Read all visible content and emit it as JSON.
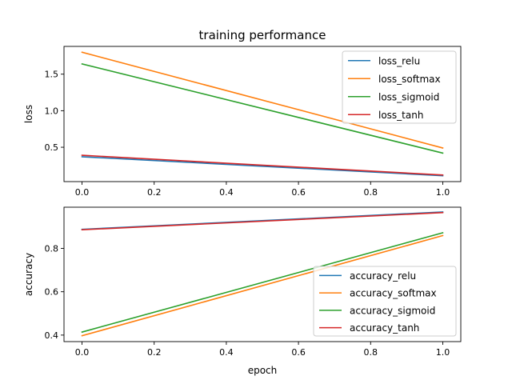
{
  "title": "training performance",
  "colors": {
    "relu": "#1f77b4",
    "softmax": "#ff7f0e",
    "sigmoid": "#2ca02c",
    "tanh": "#d62728",
    "axis": "#000000",
    "legend_border": "#cccccc"
  },
  "chart_data": [
    {
      "type": "line",
      "title": "training performance",
      "xlabel": "",
      "ylabel": "loss",
      "x": [
        0.0,
        1.0
      ],
      "xlim": [
        -0.05,
        1.05
      ],
      "ylim": [
        0.03,
        1.88
      ],
      "xticks": [
        0.0,
        0.2,
        0.4,
        0.6,
        0.8,
        1.0
      ],
      "xtick_labels": [
        "0.0",
        "0.2",
        "0.4",
        "0.6",
        "0.8",
        "1.0"
      ],
      "yticks": [
        0.5,
        1.0,
        1.5
      ],
      "ytick_labels": [
        "0.5",
        "1.0",
        "1.5"
      ],
      "grid": false,
      "legend_position": "top-right",
      "series": [
        {
          "name": "loss_relu",
          "color_key": "relu",
          "values": [
            0.37,
            0.11
          ]
        },
        {
          "name": "loss_softmax",
          "color_key": "softmax",
          "values": [
            1.8,
            0.49
          ]
        },
        {
          "name": "loss_sigmoid",
          "color_key": "sigmoid",
          "values": [
            1.64,
            0.42
          ]
        },
        {
          "name": "loss_tanh",
          "color_key": "tanh",
          "values": [
            0.39,
            0.12
          ]
        }
      ]
    },
    {
      "type": "line",
      "title": "",
      "xlabel": "epoch",
      "ylabel": "accuracy",
      "x": [
        0.0,
        1.0
      ],
      "xlim": [
        -0.05,
        1.05
      ],
      "ylim": [
        0.37,
        0.99
      ],
      "xticks": [
        0.0,
        0.2,
        0.4,
        0.6,
        0.8,
        1.0
      ],
      "xtick_labels": [
        "0.0",
        "0.2",
        "0.4",
        "0.6",
        "0.8",
        "1.0"
      ],
      "yticks": [
        0.4,
        0.6,
        0.8
      ],
      "ytick_labels": [
        "0.4",
        "0.6",
        "0.8"
      ],
      "grid": false,
      "legend_position": "lower-right",
      "series": [
        {
          "name": "accuracy_relu",
          "color_key": "relu",
          "values": [
            0.888,
            0.968
          ]
        },
        {
          "name": "accuracy_softmax",
          "color_key": "softmax",
          "values": [
            0.397,
            0.859
          ]
        },
        {
          "name": "accuracy_sigmoid",
          "color_key": "sigmoid",
          "values": [
            0.414,
            0.872
          ]
        },
        {
          "name": "accuracy_tanh",
          "color_key": "tanh",
          "values": [
            0.886,
            0.965
          ]
        }
      ]
    }
  ]
}
